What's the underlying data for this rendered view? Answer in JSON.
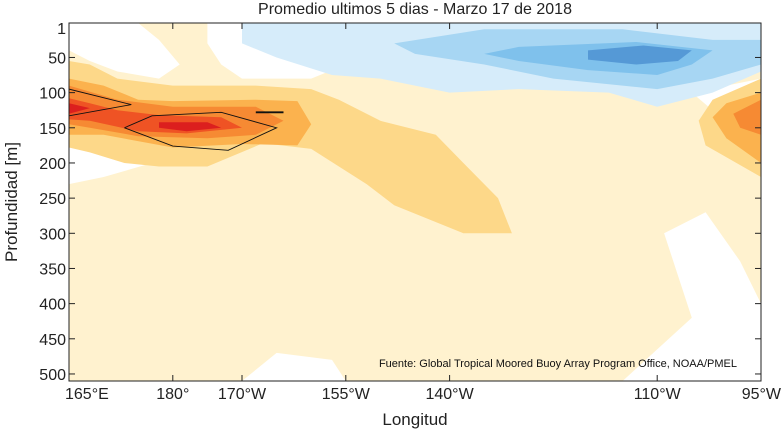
{
  "chart_data": {
    "type": "heatmap",
    "title": "Promedio ultimos 5 dias - Marzo 17 de 2018",
    "xlabel": "Longitud",
    "ylabel": "Profundidad [m]",
    "source": "Fuente: Global Tropical Moored Buoy Array Program Office, NOAA/PMEL",
    "x_ticks": [
      {
        "value": 165,
        "label": "165°E"
      },
      {
        "value": 180,
        "label": "180°"
      },
      {
        "value": 190,
        "label": "170°W"
      },
      {
        "value": 205,
        "label": "155°W"
      },
      {
        "value": 220,
        "label": "140°W"
      },
      {
        "value": 250,
        "label": "110°W"
      },
      {
        "value": 265,
        "label": "95°W"
      }
    ],
    "y_ticks": [
      1,
      50,
      100,
      150,
      200,
      250,
      300,
      350,
      400,
      450,
      500
    ],
    "xlim": [
      165,
      265
    ],
    "ylim": [
      1,
      510
    ],
    "y_inverted": true,
    "grid": false,
    "colors": {
      "deep_red": "#dc1f1e",
      "red": "#ef5324",
      "orange": "#f68a33",
      "light_orange": "#fbb24e",
      "yellow": "#fdd889",
      "pale_yellow": "#fff2cf",
      "pale_blue": "#d6ecfa",
      "light_blue": "#a7d6f3",
      "blue": "#7fc1ec",
      "dark_blue": "#5599d6"
    },
    "contours": [
      {
        "name": "pale_yellow",
        "color": "#fff2cf",
        "points": [
          [
            165,
            510
          ],
          [
            265,
            510
          ],
          [
            265,
            200
          ],
          [
            262,
            160
          ],
          [
            258,
            125
          ],
          [
            255,
            100
          ],
          [
            265,
            80
          ],
          [
            265,
            1
          ],
          [
            165,
            1
          ],
          [
            165,
            510
          ]
        ]
      },
      {
        "name": "pale_yellow_hole_a",
        "color": "#ffffff",
        "points": [
          [
            165,
            1
          ],
          [
            175,
            1
          ],
          [
            178,
            25
          ],
          [
            181,
            60
          ],
          [
            178,
            80
          ],
          [
            172,
            70
          ],
          [
            168,
            55
          ],
          [
            165,
            40
          ]
        ]
      },
      {
        "name": "pale_yellow_hole_b",
        "color": "#ffffff",
        "points": [
          [
            185,
            1
          ],
          [
            195,
            1
          ],
          [
            200,
            20
          ],
          [
            205,
            60
          ],
          [
            200,
            80
          ],
          [
            190,
            80
          ],
          [
            187,
            60
          ],
          [
            185,
            30
          ]
        ]
      },
      {
        "name": "pale_yellow_hole_c",
        "color": "#ffffff",
        "points": [
          [
            165,
            170
          ],
          [
            170,
            175
          ],
          [
            172,
            185
          ],
          [
            177,
            200
          ],
          [
            170,
            220
          ],
          [
            165,
            230
          ]
        ]
      },
      {
        "name": "pale_yellow_hole_d",
        "color": "#ffffff",
        "points": [
          [
            245,
            510
          ],
          [
            255,
            420
          ],
          [
            251,
            300
          ],
          [
            257,
            270
          ],
          [
            262,
            340
          ],
          [
            265,
            400
          ],
          [
            265,
            510
          ]
        ]
      },
      {
        "name": "pale_yellow_hole_e",
        "color": "#ffffff",
        "points": [
          [
            190,
            510
          ],
          [
            195,
            470
          ],
          [
            203,
            480
          ],
          [
            205,
            510
          ]
        ]
      },
      {
        "name": "pale_blue",
        "color": "#d6ecfa",
        "points": [
          [
            190,
            1
          ],
          [
            265,
            1
          ],
          [
            265,
            70
          ],
          [
            258,
            100
          ],
          [
            250,
            120
          ],
          [
            243,
            100
          ],
          [
            230,
            95
          ],
          [
            220,
            100
          ],
          [
            210,
            80
          ],
          [
            203,
            75
          ],
          [
            195,
            50
          ],
          [
            190,
            30
          ]
        ]
      },
      {
        "name": "light_blue",
        "color": "#a7d6f3",
        "points": [
          [
            225,
            10
          ],
          [
            245,
            10
          ],
          [
            258,
            25
          ],
          [
            265,
            25
          ],
          [
            265,
            60
          ],
          [
            258,
            80
          ],
          [
            250,
            95
          ],
          [
            245,
            90
          ],
          [
            235,
            80
          ],
          [
            225,
            60
          ],
          [
            215,
            45
          ],
          [
            212,
            30
          ]
        ]
      },
      {
        "name": "blue",
        "color": "#7fc1ec",
        "points": [
          [
            230,
            35
          ],
          [
            247,
            28
          ],
          [
            258,
            40
          ],
          [
            255,
            60
          ],
          [
            250,
            75
          ],
          [
            240,
            68
          ],
          [
            230,
            55
          ],
          [
            225,
            45
          ]
        ]
      },
      {
        "name": "dark_blue",
        "color": "#5599d6",
        "points": [
          [
            240,
            40
          ],
          [
            248,
            33
          ],
          [
            255,
            40
          ],
          [
            253,
            55
          ],
          [
            247,
            60
          ],
          [
            240,
            53
          ]
        ]
      },
      {
        "name": "yellow_w",
        "color": "#fdd889",
        "points": [
          [
            165,
            55
          ],
          [
            168,
            60
          ],
          [
            172,
            80
          ],
          [
            180,
            90
          ],
          [
            192,
            90
          ],
          [
            200,
            95
          ],
          [
            204,
            110
          ],
          [
            210,
            140
          ],
          [
            218,
            160
          ],
          [
            222,
            200
          ],
          [
            227,
            250
          ],
          [
            229,
            300
          ],
          [
            222,
            300
          ],
          [
            212,
            260
          ],
          [
            208,
            230
          ],
          [
            200,
            180
          ],
          [
            193,
            172
          ],
          [
            185,
            205
          ],
          [
            178,
            205
          ],
          [
            173,
            200
          ],
          [
            168,
            185
          ],
          [
            165,
            178
          ]
        ]
      },
      {
        "name": "yellow_e",
        "color": "#fdd889",
        "points": [
          [
            265,
            80
          ],
          [
            258,
            110
          ],
          [
            256,
            140
          ],
          [
            257,
            175
          ],
          [
            265,
            220
          ]
        ]
      },
      {
        "name": "light_orange_w",
        "color": "#fbb24e",
        "points": [
          [
            165,
            80
          ],
          [
            170,
            90
          ],
          [
            175,
            110
          ],
          [
            180,
            112
          ],
          [
            192,
            110
          ],
          [
            198,
            112
          ],
          [
            200,
            145
          ],
          [
            198,
            175
          ],
          [
            190,
            173
          ],
          [
            180,
            178
          ],
          [
            170,
            160
          ],
          [
            165,
            160
          ]
        ]
      },
      {
        "name": "light_orange_e",
        "color": "#fbb24e",
        "points": [
          [
            265,
            100
          ],
          [
            260,
            115
          ],
          [
            258,
            135
          ],
          [
            260,
            165
          ],
          [
            265,
            200
          ]
        ]
      },
      {
        "name": "orange_w",
        "color": "#f68a33",
        "points": [
          [
            165,
            90
          ],
          [
            172,
            110
          ],
          [
            180,
            120
          ],
          [
            192,
            120
          ],
          [
            196,
            140
          ],
          [
            192,
            160
          ],
          [
            185,
            165
          ],
          [
            175,
            162
          ],
          [
            168,
            150
          ],
          [
            165,
            145
          ]
        ]
      },
      {
        "name": "orange_e",
        "color": "#f68a33",
        "points": [
          [
            265,
            110
          ],
          [
            261,
            130
          ],
          [
            262,
            150
          ],
          [
            265,
            160
          ]
        ]
      },
      {
        "name": "red",
        "color": "#ef5324",
        "points": [
          [
            165,
            108
          ],
          [
            168,
            115
          ],
          [
            172,
            125
          ],
          [
            178,
            132
          ],
          [
            187,
            135
          ],
          [
            190,
            150
          ],
          [
            182,
            158
          ],
          [
            175,
            155
          ],
          [
            168,
            140
          ],
          [
            165,
            138
          ]
        ]
      },
      {
        "name": "deep_red",
        "color": "#dc1f1e",
        "points": [
          [
            165,
            115
          ],
          [
            168,
            122
          ],
          [
            165,
            130
          ]
        ]
      },
      {
        "name": "deep_red_b",
        "color": "#dc1f1e",
        "points": [
          [
            178,
            142
          ],
          [
            185,
            142
          ],
          [
            187,
            150
          ],
          [
            182,
            155
          ],
          [
            178,
            150
          ]
        ]
      }
    ],
    "contour_lines": [
      {
        "points": [
          [
            165,
            95
          ],
          [
            174,
            117
          ],
          [
            165,
            133
          ]
        ]
      },
      {
        "points": [
          [
            173,
            150
          ],
          [
            177,
            133
          ],
          [
            187,
            128
          ],
          [
            195,
            150
          ],
          [
            188,
            182
          ],
          [
            180,
            176
          ],
          [
            173,
            150
          ]
        ]
      },
      {
        "points": [
          [
            192,
            128
          ],
          [
            196,
            128
          ]
        ]
      }
    ]
  }
}
